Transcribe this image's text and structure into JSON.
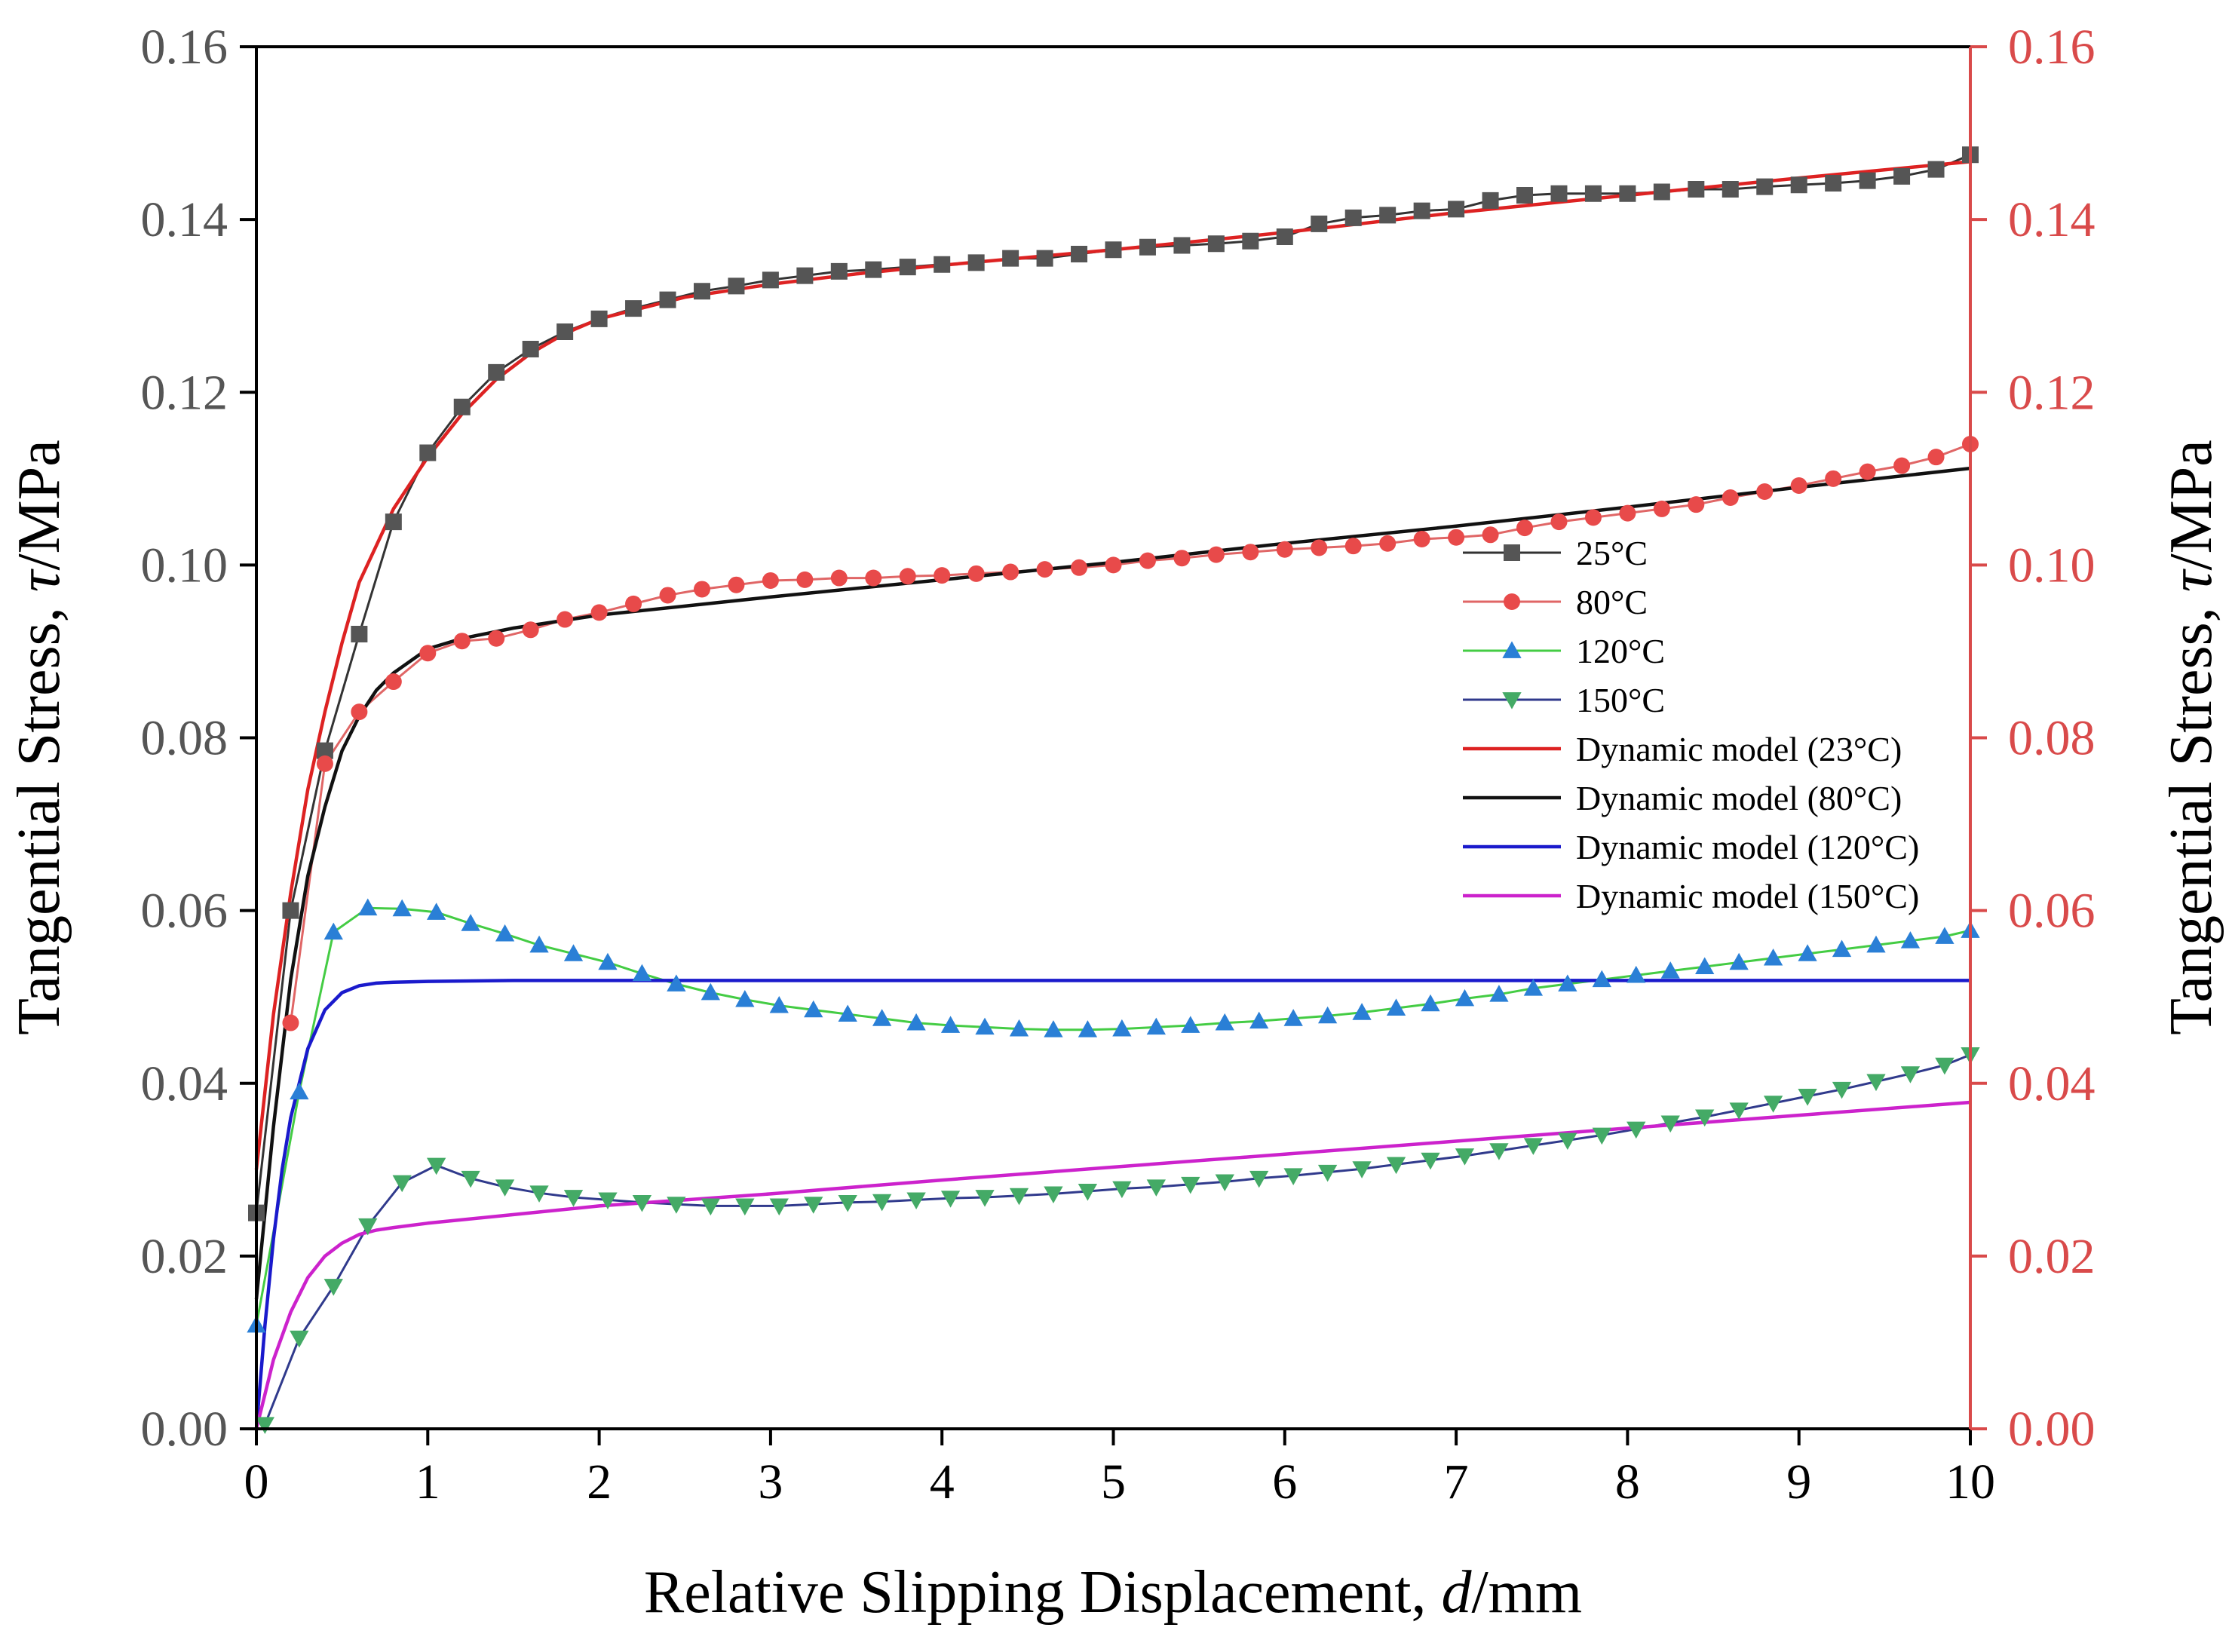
{
  "chart_data": {
    "type": "line",
    "xlabel_main": "Relative Slipping Displacement, ",
    "xlabel_var": "d",
    "xlabel_unit": "/mm",
    "ylabel_main": "Tangential Stress, ",
    "ylabel_var": "τ",
    "ylabel_unit": "/MPa",
    "xlim": [
      0,
      10
    ],
    "ylim": [
      0,
      0.16
    ],
    "x_ticks": [
      "0",
      "1",
      "2",
      "3",
      "4",
      "5",
      "6",
      "7",
      "8",
      "9",
      "10"
    ],
    "y_ticks": [
      "0.00",
      "0.02",
      "0.04",
      "0.06",
      "0.08",
      "0.10",
      "0.12",
      "0.14",
      "0.16"
    ],
    "right_axis_color": "#d94a4a",
    "legend_position": "center-right",
    "series": [
      {
        "name": "25°C",
        "kind": "data",
        "marker": "square",
        "line_color": "#333333",
        "marker_color": "#555555",
        "x": [
          0,
          0.2,
          0.4,
          0.6,
          0.8,
          1.0,
          1.2,
          1.4,
          1.6,
          1.8,
          2.0,
          2.2,
          2.4,
          2.6,
          2.8,
          3.0,
          3.2,
          3.4,
          3.6,
          3.8,
          4.0,
          4.2,
          4.4,
          4.6,
          4.8,
          5.0,
          5.2,
          5.4,
          5.6,
          5.8,
          6.0,
          6.2,
          6.4,
          6.6,
          6.8,
          7.0,
          7.2,
          7.4,
          7.6,
          7.8,
          8.0,
          8.2,
          8.4,
          8.6,
          8.8,
          9.0,
          9.2,
          9.4,
          9.6,
          9.8,
          10.0
        ],
        "y": [
          0.025,
          0.06,
          0.0785,
          0.092,
          0.105,
          0.113,
          0.1183,
          0.1223,
          0.125,
          0.127,
          0.1285,
          0.1297,
          0.1307,
          0.1317,
          0.1323,
          0.133,
          0.1335,
          0.134,
          0.1342,
          0.1345,
          0.1348,
          0.135,
          0.1355,
          0.1355,
          0.136,
          0.1365,
          0.1368,
          0.137,
          0.1372,
          0.1375,
          0.138,
          0.1395,
          0.1402,
          0.1405,
          0.141,
          0.1412,
          0.1422,
          0.1428,
          0.143,
          0.143,
          0.143,
          0.1432,
          0.1435,
          0.1435,
          0.1438,
          0.144,
          0.1442,
          0.1445,
          0.145,
          0.1458,
          0.1475
        ]
      },
      {
        "name": "80°C",
        "kind": "data",
        "marker": "circle",
        "line_color": "#e06666",
        "marker_color": "#e84a4a",
        "x": [
          0.2,
          0.4,
          0.6,
          0.8,
          1.0,
          1.2,
          1.4,
          1.6,
          1.8,
          2.0,
          2.2,
          2.4,
          2.6,
          2.8,
          3.0,
          3.2,
          3.4,
          3.6,
          3.8,
          4.0,
          4.2,
          4.4,
          4.6,
          4.8,
          5.0,
          5.2,
          5.4,
          5.6,
          5.8,
          6.0,
          6.2,
          6.4,
          6.6,
          6.8,
          7.0,
          7.2,
          7.4,
          7.6,
          7.8,
          8.0,
          8.2,
          8.4,
          8.6,
          8.8,
          9.0,
          9.2,
          9.4,
          9.6,
          9.8,
          10.0
        ],
        "y": [
          0.047,
          0.077,
          0.083,
          0.0865,
          0.0898,
          0.0912,
          0.0915,
          0.0925,
          0.0937,
          0.0945,
          0.0955,
          0.0965,
          0.0972,
          0.0977,
          0.0982,
          0.0983,
          0.0985,
          0.0985,
          0.0987,
          0.0988,
          0.099,
          0.0992,
          0.0995,
          0.0997,
          0.1,
          0.1005,
          0.1008,
          0.1012,
          0.1015,
          0.1018,
          0.102,
          0.1022,
          0.1025,
          0.103,
          0.1032,
          0.1035,
          0.1043,
          0.105,
          0.1055,
          0.106,
          0.1065,
          0.107,
          0.1078,
          0.1085,
          0.1092,
          0.11,
          0.1108,
          0.1115,
          0.1125,
          0.114
        ]
      },
      {
        "name": "120°C",
        "kind": "data",
        "marker": "triangle-up",
        "line_color": "#44cc44",
        "marker_color": "#2a7fd6",
        "x": [
          0,
          0.25,
          0.45,
          0.65,
          0.85,
          1.05,
          1.25,
          1.45,
          1.65,
          1.85,
          2.05,
          2.25,
          2.45,
          2.65,
          2.85,
          3.05,
          3.25,
          3.45,
          3.65,
          3.85,
          4.05,
          4.25,
          4.45,
          4.65,
          4.85,
          5.05,
          5.25,
          5.45,
          5.65,
          5.85,
          6.05,
          6.25,
          6.45,
          6.65,
          6.85,
          7.05,
          7.25,
          7.45,
          7.65,
          7.85,
          8.05,
          8.25,
          8.45,
          8.65,
          8.85,
          9.05,
          9.25,
          9.45,
          9.65,
          9.85,
          10.0
        ],
        "y": [
          0.012,
          0.039,
          0.0575,
          0.0603,
          0.0602,
          0.0598,
          0.0585,
          0.0573,
          0.056,
          0.055,
          0.054,
          0.0527,
          0.0515,
          0.0505,
          0.0497,
          0.049,
          0.0485,
          0.048,
          0.0475,
          0.047,
          0.0467,
          0.0465,
          0.0463,
          0.0462,
          0.0462,
          0.0463,
          0.0465,
          0.0467,
          0.047,
          0.0472,
          0.0475,
          0.0478,
          0.0482,
          0.0487,
          0.0492,
          0.0498,
          0.0503,
          0.051,
          0.0515,
          0.052,
          0.0525,
          0.053,
          0.0535,
          0.054,
          0.0545,
          0.055,
          0.0555,
          0.056,
          0.0565,
          0.057,
          0.0577
        ]
      },
      {
        "name": "150°C",
        "kind": "data",
        "marker": "triangle-down",
        "line_color": "#303a8c",
        "marker_color": "#44aa66",
        "x": [
          0.05,
          0.25,
          0.45,
          0.65,
          0.85,
          1.05,
          1.25,
          1.45,
          1.65,
          1.85,
          2.05,
          2.25,
          2.45,
          2.65,
          2.85,
          3.05,
          3.25,
          3.45,
          3.65,
          3.85,
          4.05,
          4.25,
          4.45,
          4.65,
          4.85,
          5.05,
          5.25,
          5.45,
          5.65,
          5.85,
          6.05,
          6.25,
          6.45,
          6.65,
          6.85,
          7.05,
          7.25,
          7.45,
          7.65,
          7.85,
          8.05,
          8.25,
          8.45,
          8.65,
          8.85,
          9.05,
          9.25,
          9.45,
          9.65,
          9.85,
          10.0
        ],
        "y": [
          0.0005,
          0.0105,
          0.0165,
          0.0235,
          0.0285,
          0.0305,
          0.029,
          0.028,
          0.0273,
          0.0268,
          0.0265,
          0.0262,
          0.026,
          0.0258,
          0.0258,
          0.0258,
          0.026,
          0.0262,
          0.0263,
          0.0265,
          0.0267,
          0.0268,
          0.027,
          0.0272,
          0.0275,
          0.0278,
          0.028,
          0.0283,
          0.0286,
          0.029,
          0.0293,
          0.0297,
          0.0301,
          0.0306,
          0.0311,
          0.0316,
          0.0322,
          0.0328,
          0.0334,
          0.034,
          0.0347,
          0.0354,
          0.0361,
          0.0369,
          0.0377,
          0.0385,
          0.0393,
          0.0402,
          0.0411,
          0.0421,
          0.0433
        ]
      },
      {
        "name": "Dynamic model (23°C)",
        "kind": "model",
        "line_color": "#dd2222",
        "x": [
          0,
          0.1,
          0.2,
          0.3,
          0.4,
          0.5,
          0.6,
          0.8,
          1.0,
          1.2,
          1.4,
          1.6,
          1.8,
          2.0,
          2.5,
          3.0,
          3.5,
          4.0,
          5.0,
          6.0,
          7.0,
          8.0,
          9.0,
          10.0
        ],
        "y": [
          0.03,
          0.048,
          0.062,
          0.074,
          0.083,
          0.091,
          0.098,
          0.1065,
          0.1125,
          0.1175,
          0.1215,
          0.1245,
          0.1268,
          0.1285,
          0.131,
          0.1325,
          0.1337,
          0.1347,
          0.1365,
          0.1385,
          0.1408,
          0.1428,
          0.1448,
          0.1467
        ]
      },
      {
        "name": "Dynamic model (80°C)",
        "kind": "model",
        "line_color": "#111111",
        "x": [
          0,
          0.1,
          0.2,
          0.3,
          0.4,
          0.5,
          0.6,
          0.7,
          0.8,
          1.0,
          1.2,
          1.5,
          2.0,
          3.0,
          4.0,
          5.0,
          6.0,
          7.0,
          8.0,
          9.0,
          10.0
        ],
        "y": [
          0.015,
          0.035,
          0.052,
          0.064,
          0.072,
          0.0785,
          0.0825,
          0.0855,
          0.0875,
          0.0903,
          0.0915,
          0.0927,
          0.0942,
          0.0963,
          0.0983,
          0.1003,
          0.1025,
          0.1045,
          0.1067,
          0.109,
          0.1112
        ]
      },
      {
        "name": "Dynamic model (120°C)",
        "kind": "model",
        "line_color": "#1a1acc",
        "x": [
          0,
          0.05,
          0.1,
          0.15,
          0.2,
          0.3,
          0.4,
          0.5,
          0.6,
          0.7,
          0.8,
          1.0,
          1.5,
          2.0,
          10.0
        ],
        "y": [
          0.0,
          0.012,
          0.022,
          0.03,
          0.036,
          0.044,
          0.0485,
          0.0505,
          0.0513,
          0.0516,
          0.0517,
          0.0518,
          0.0519,
          0.0519,
          0.0519
        ]
      },
      {
        "name": "Dynamic model (150°C)",
        "kind": "model",
        "line_color": "#cc22cc",
        "x": [
          0,
          0.05,
          0.1,
          0.2,
          0.3,
          0.4,
          0.5,
          0.6,
          0.7,
          0.8,
          1.0,
          1.5,
          2.0,
          3.0,
          4.0,
          5.0,
          6.0,
          7.0,
          8.0,
          9.0,
          10.0
        ],
        "y": [
          0.0,
          0.004,
          0.008,
          0.0135,
          0.0175,
          0.02,
          0.0215,
          0.0225,
          0.023,
          0.0233,
          0.0238,
          0.0248,
          0.0258,
          0.0272,
          0.0288,
          0.0303,
          0.0318,
          0.0333,
          0.0348,
          0.0363,
          0.0378
        ]
      }
    ]
  }
}
